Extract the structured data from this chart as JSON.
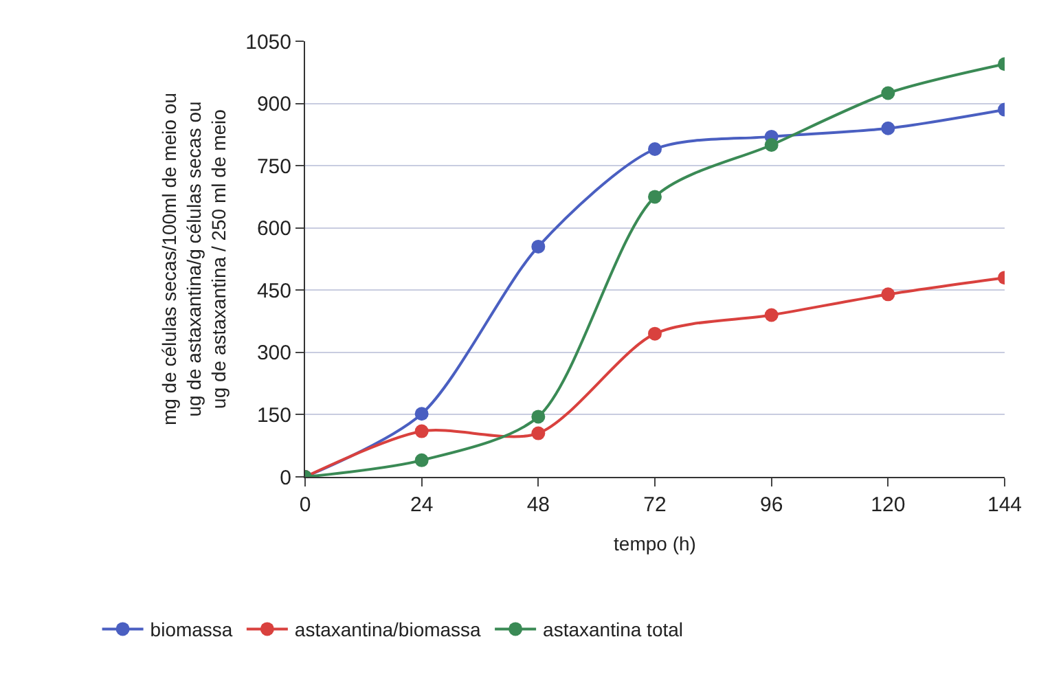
{
  "chart_data": {
    "type": "line",
    "xlabel": "tempo (h)",
    "ylabel": "mg de células secas/100ml de meio ou\nug de astaxantina/g células secas ou\nug de astaxantina / 250 ml de meio",
    "x": [
      0,
      24,
      48,
      72,
      96,
      120,
      144
    ],
    "series": [
      {
        "name": "biomassa",
        "color": "#4a5fc1",
        "values": [
          0,
          152,
          555,
          790,
          820,
          840,
          885
        ]
      },
      {
        "name": "astaxantina/biomassa",
        "color": "#d9413e",
        "values": [
          0,
          110,
          105,
          345,
          390,
          440,
          480
        ]
      },
      {
        "name": "astaxantina total",
        "color": "#3a8a55",
        "values": [
          0,
          40,
          145,
          675,
          800,
          925,
          995
        ]
      }
    ],
    "xlim": [
      0,
      144
    ],
    "xticks": [
      0,
      24,
      48,
      72,
      96,
      120,
      144
    ],
    "ylim": [
      0,
      1050
    ],
    "yticks": [
      0,
      150,
      300,
      450,
      600,
      750,
      900,
      1050
    ],
    "grid": "y",
    "legend": "bottom",
    "marker": "circle",
    "line_style": "solid"
  }
}
